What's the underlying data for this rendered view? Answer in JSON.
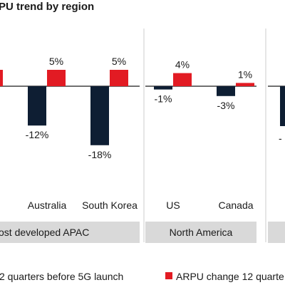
{
  "chart_data": {
    "type": "bar",
    "title": "PU trend by region",
    "colors": {
      "before": "#0e1e33",
      "after": "#e21b23",
      "group_band": "#d9d9d9",
      "divider": "#cccccc"
    },
    "series": [
      {
        "name": "2 quarters before 5G launch"
      },
      {
        "name": "ARPU change 12 quarte"
      }
    ],
    "groups": [
      {
        "label": "ost developed APAC",
        "categories": [
          {
            "name": "Australia",
            "values": [
              -12,
              5
            ],
            "labels": [
              "-12%",
              "5%"
            ]
          },
          {
            "name": "South Korea",
            "values": [
              -18,
              5
            ],
            "labels": [
              "-18%",
              "5%"
            ]
          }
        ]
      },
      {
        "label": "North America",
        "categories": [
          {
            "name": "US",
            "values": [
              -1,
              4
            ],
            "labels": [
              "-1%",
              "4%"
            ]
          },
          {
            "name": "Canada",
            "values": [
              -3,
              1
            ],
            "labels": [
              "-3%",
              "1%"
            ]
          }
        ]
      }
    ],
    "partial_labels": {
      "right_edge_value": "-"
    },
    "grid": false,
    "legend_position": "bottom"
  }
}
